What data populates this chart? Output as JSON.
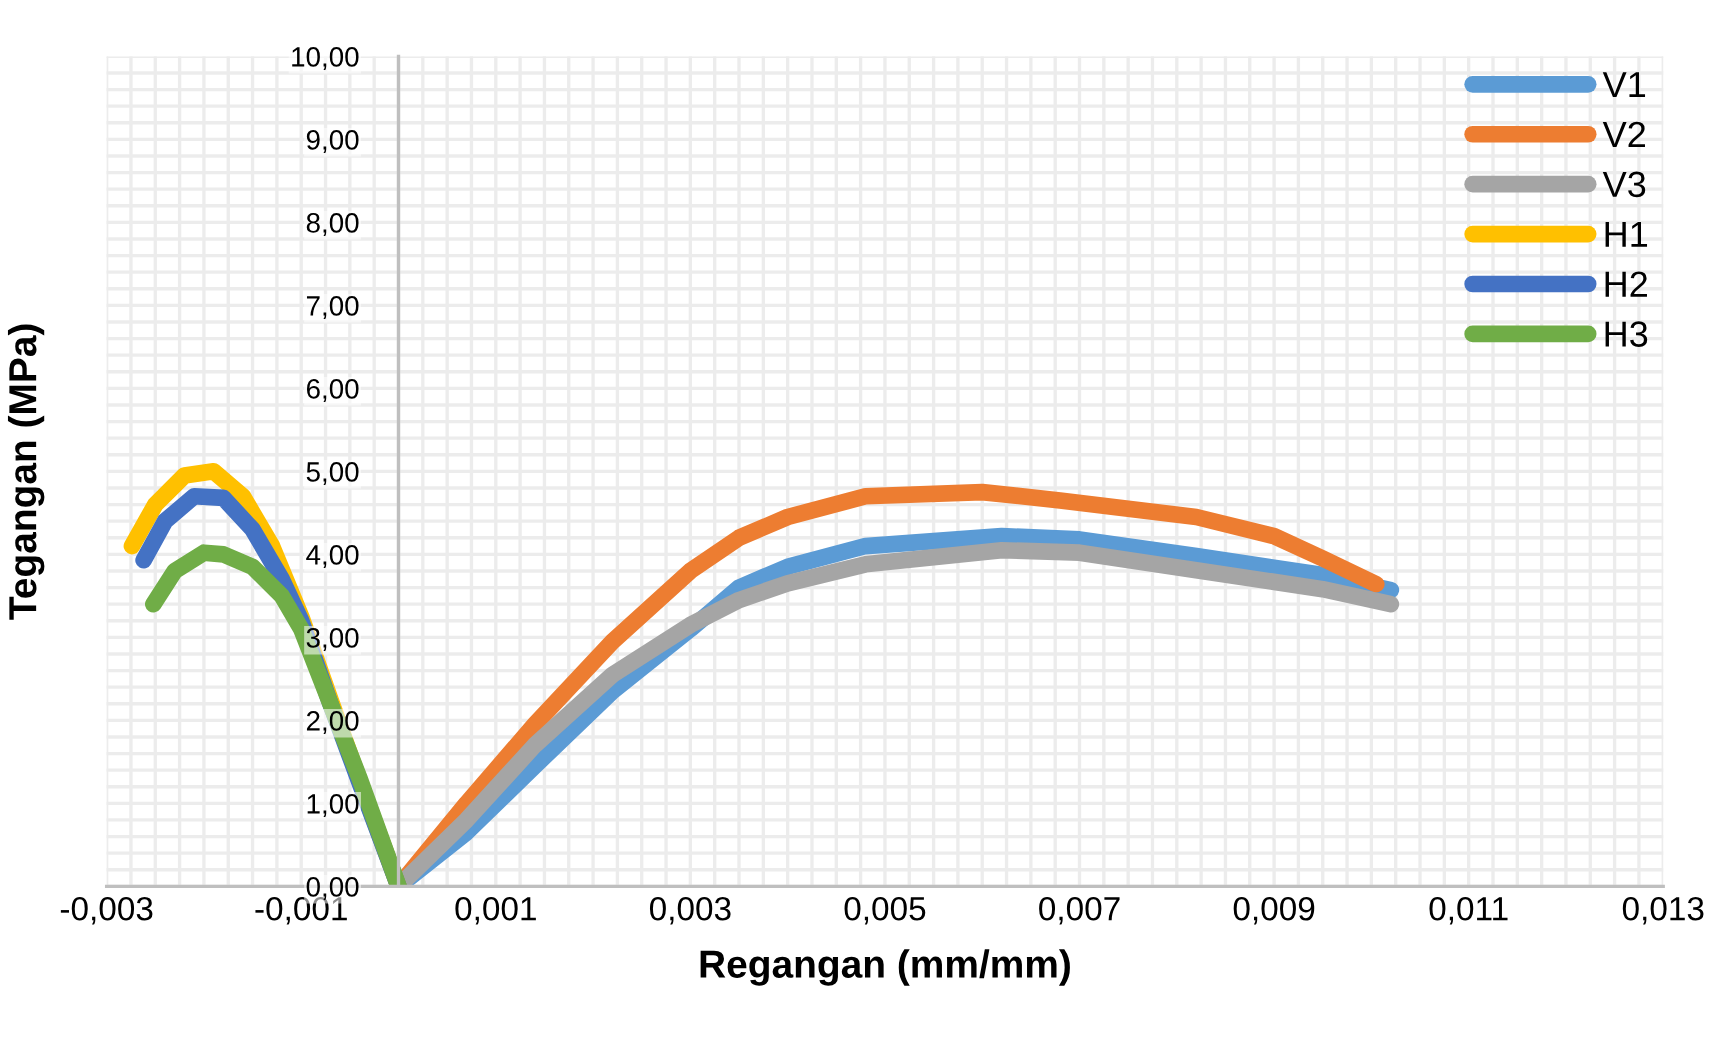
{
  "chart_data": {
    "type": "line",
    "xlabel": "Regangan (mm/mm)",
    "ylabel": "Tegangan (MPa)",
    "series": [
      {
        "name": "V1",
        "color": "#5b9bd5",
        "x": [
          0,
          0.0007,
          0.0014,
          0.0022,
          0.003,
          0.0035,
          0.004,
          0.0048,
          0.0062,
          0.007,
          0.0082,
          0.0095,
          0.0102
        ],
        "values": [
          0,
          0.65,
          1.45,
          2.35,
          3.1,
          3.6,
          3.85,
          4.1,
          4.22,
          4.18,
          3.98,
          3.75,
          3.57
        ]
      },
      {
        "name": "V2",
        "color": "#ed7d31",
        "x": [
          0,
          0.0007,
          0.0014,
          0.0022,
          0.003,
          0.0035,
          0.004,
          0.0048,
          0.006,
          0.0068,
          0.0082,
          0.009,
          0.0095,
          0.01005
        ],
        "values": [
          0,
          1.0,
          1.95,
          2.95,
          3.8,
          4.2,
          4.45,
          4.7,
          4.75,
          4.65,
          4.45,
          4.22,
          3.95,
          3.64
        ]
      },
      {
        "name": "V3",
        "color": "#a5a5a5",
        "x": [
          0,
          0.0007,
          0.0014,
          0.0022,
          0.003,
          0.0035,
          0.004,
          0.0048,
          0.0062,
          0.007,
          0.0082,
          0.0095,
          0.0102
        ],
        "values": [
          0,
          0.8,
          1.7,
          2.55,
          3.15,
          3.45,
          3.65,
          3.88,
          4.05,
          4.02,
          3.81,
          3.58,
          3.4
        ]
      },
      {
        "name": "H1",
        "color": "#ffc000",
        "x": [
          -0.00274,
          -0.0025,
          -0.0022,
          -0.0019,
          -0.0016,
          -0.0013,
          -0.001,
          -0.0007,
          -0.0004,
          0
        ],
        "values": [
          4.1,
          4.6,
          4.95,
          5.0,
          4.7,
          4.1,
          3.25,
          2.25,
          1.27,
          0
        ]
      },
      {
        "name": "H2",
        "color": "#4472c4",
        "x": [
          -0.00262,
          -0.0024,
          -0.0021,
          -0.0018,
          -0.0015,
          -0.0012,
          -0.001,
          -0.0007,
          -0.0004,
          0
        ],
        "values": [
          3.93,
          4.4,
          4.7,
          4.68,
          4.3,
          3.7,
          3.2,
          2.2,
          1.25,
          0
        ]
      },
      {
        "name": "H3",
        "color": "#70ad47",
        "x": [
          -0.00252,
          -0.0023,
          -0.002,
          -0.0018,
          -0.0015,
          -0.0012,
          -0.001,
          -0.0007,
          -0.0004,
          0
        ],
        "values": [
          3.4,
          3.8,
          4.02,
          4.0,
          3.85,
          3.5,
          3.1,
          2.2,
          1.3,
          0
        ]
      }
    ],
    "xlim": [
      -0.003,
      0.013
    ],
    "xticks": [
      {
        "value": -0.003,
        "label": "-0,003"
      },
      {
        "value": -0.001,
        "label": "-0,001"
      },
      {
        "value": 0.001,
        "label": "0,001"
      },
      {
        "value": 0.003,
        "label": "0,003"
      },
      {
        "value": 0.005,
        "label": "0,005"
      },
      {
        "value": 0.007,
        "label": "0,007"
      },
      {
        "value": 0.009,
        "label": "0,009"
      },
      {
        "value": 0.011,
        "label": "0,011"
      },
      {
        "value": 0.013,
        "label": "0,013"
      }
    ],
    "ylim": [
      0,
      10
    ],
    "yticks": [
      {
        "value": 0,
        "label": "0,00"
      },
      {
        "value": 1,
        "label": "1,00"
      },
      {
        "value": 2,
        "label": "2,00"
      },
      {
        "value": 3,
        "label": "3,00"
      },
      {
        "value": 4,
        "label": "4,00"
      },
      {
        "value": 5,
        "label": "5,00"
      },
      {
        "value": 6,
        "label": "6,00"
      },
      {
        "value": 7,
        "label": "7,00"
      },
      {
        "value": 8,
        "label": "8,00"
      },
      {
        "value": 9,
        "label": "9,00"
      },
      {
        "value": 10,
        "label": "10,00"
      }
    ],
    "grid": true,
    "legend": "top right",
    "marker": "none",
    "line_style": "solid"
  }
}
